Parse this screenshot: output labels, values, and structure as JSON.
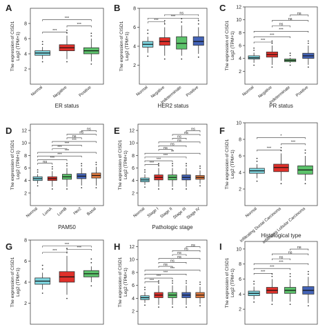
{
  "chart_data": [
    {
      "panel": "A",
      "type": "box",
      "ylabel": "The expression of CISD1",
      "ylabel2": "Log2 (TPM+1)",
      "xlabel": "ER status",
      "ylim": [
        0,
        10
      ],
      "yticks": [
        2,
        4,
        6,
        8
      ],
      "categories": [
        "Normal",
        "Negative",
        "Positive"
      ],
      "boxes": [
        {
          "q1": 3.8,
          "median": 4.1,
          "q3": 4.4,
          "lo": 3.3,
          "hi": 4.9,
          "color": "#7fd6e0"
        },
        {
          "q1": 4.4,
          "median": 4.8,
          "q3": 5.2,
          "lo": 3.3,
          "hi": 6.4,
          "color": "#e0302a"
        },
        {
          "q1": 4.0,
          "median": 4.4,
          "q3": 4.8,
          "lo": 3.0,
          "hi": 6.0,
          "color": "#5cc26b"
        }
      ],
      "comparisons": [
        {
          "a": 0,
          "b": 1,
          "label": "***"
        },
        {
          "a": 1,
          "b": 2,
          "label": "***"
        },
        {
          "a": 0,
          "b": 2,
          "label": "***"
        }
      ]
    },
    {
      "panel": "B",
      "type": "box",
      "ylabel": "The expression of CISD1",
      "ylabel2": "Log2 (TPM+1)",
      "xlabel": "HER2 status",
      "ylim": [
        0,
        8
      ],
      "yticks": [
        2,
        4,
        6,
        8
      ],
      "categories": [
        "Normal",
        "Negative",
        "Indeterminate",
        "Positive"
      ],
      "boxes": [
        {
          "q1": 3.9,
          "median": 4.2,
          "q3": 4.5,
          "lo": 3.3,
          "hi": 5.0,
          "color": "#7fd6e0"
        },
        {
          "q1": 4.1,
          "median": 4.5,
          "q3": 4.9,
          "lo": 3.0,
          "hi": 6.0,
          "color": "#e0302a"
        },
        {
          "q1": 3.7,
          "median": 4.3,
          "q3": 5.0,
          "lo": 3.0,
          "hi": 6.2,
          "color": "#5cc26b"
        },
        {
          "q1": 4.1,
          "median": 4.5,
          "q3": 5.0,
          "lo": 3.2,
          "hi": 6.0,
          "color": "#4464b8"
        }
      ],
      "comparisons": [
        {
          "a": 0,
          "b": 1,
          "label": "***"
        },
        {
          "a": 0,
          "b": 3,
          "label": "***"
        },
        {
          "a": 1,
          "b": 3,
          "label": "ns"
        }
      ]
    },
    {
      "panel": "C",
      "type": "box",
      "ylabel": "The expression of CISD1",
      "ylabel2": "Log2 (TPM+1)",
      "xlabel": "PR status",
      "ylim": [
        0,
        12
      ],
      "yticks": [
        2,
        4,
        6,
        8,
        10,
        12
      ],
      "categories": [
        "Normal",
        "Negative",
        "Indeterminate",
        "Positive"
      ],
      "boxes": [
        {
          "q1": 3.9,
          "median": 4.1,
          "q3": 4.4,
          "lo": 3.3,
          "hi": 4.9,
          "color": "#7fd6e0"
        },
        {
          "q1": 4.2,
          "median": 4.6,
          "q3": 5.0,
          "lo": 3.0,
          "hi": 6.0,
          "color": "#e0302a"
        },
        {
          "q1": 3.5,
          "median": 3.7,
          "q3": 3.9,
          "lo": 3.3,
          "hi": 4.1,
          "color": "#5cc26b"
        },
        {
          "q1": 4.0,
          "median": 4.4,
          "q3": 4.8,
          "lo": 3.0,
          "hi": 6.0,
          "color": "#4464b8"
        }
      ],
      "comparisons": [
        {
          "a": 0,
          "b": 1,
          "label": "***"
        },
        {
          "a": 0,
          "b": 2,
          "label": "***"
        },
        {
          "a": 0,
          "b": 3,
          "label": "***"
        },
        {
          "a": 1,
          "b": 2,
          "label": "ns"
        },
        {
          "a": 1,
          "b": 3,
          "label": "ns"
        },
        {
          "a": 2,
          "b": 3,
          "label": "ns"
        }
      ]
    },
    {
      "panel": "D",
      "type": "box",
      "ylabel": "The expression of CISD1",
      "ylabel2": "Log2 (TPM+1)",
      "xlabel": "PAM50",
      "ylim": [
        0,
        13
      ],
      "yticks": [
        2,
        4,
        6,
        8,
        10,
        12
      ],
      "categories": [
        "Normal",
        "LumA",
        "LumB",
        "Her2",
        "Basal"
      ],
      "boxes": [
        {
          "q1": 4.0,
          "median": 4.3,
          "q3": 4.6,
          "lo": 3.5,
          "hi": 5.0,
          "color": "#7fd6e0"
        },
        {
          "q1": 4.0,
          "median": 4.3,
          "q3": 4.6,
          "lo": 3.0,
          "hi": 5.5,
          "color": "#e0302a"
        },
        {
          "q1": 4.2,
          "median": 4.6,
          "q3": 5.0,
          "lo": 3.0,
          "hi": 6.0,
          "color": "#5cc26b"
        },
        {
          "q1": 4.3,
          "median": 4.7,
          "q3": 5.1,
          "lo": 3.2,
          "hi": 6.0,
          "color": "#4464b8"
        },
        {
          "q1": 4.4,
          "median": 4.8,
          "q3": 5.2,
          "lo": 3.2,
          "hi": 6.2,
          "color": "#e07a40"
        }
      ],
      "comparisons": [
        {
          "a": 0,
          "b": 1,
          "label": "ns"
        },
        {
          "a": 0,
          "b": 2,
          "label": "***"
        },
        {
          "a": 0,
          "b": 3,
          "label": "***"
        },
        {
          "a": 0,
          "b": 4,
          "label": "***"
        },
        {
          "a": 1,
          "b": 2,
          "label": "***"
        },
        {
          "a": 1,
          "b": 3,
          "label": "***"
        },
        {
          "a": 1,
          "b": 4,
          "label": "***"
        },
        {
          "a": 2,
          "b": 3,
          "label": "ns"
        },
        {
          "a": 2,
          "b": 4,
          "label": "ns"
        },
        {
          "a": 3,
          "b": 4,
          "label": "ns"
        }
      ]
    },
    {
      "panel": "E",
      "type": "box",
      "ylabel": "The expression of CISD1",
      "ylabel2": "Log2 (TPM+1)",
      "xlabel": "Pathologic stage",
      "ylim": [
        0,
        13
      ],
      "yticks": [
        2,
        4,
        6,
        8,
        10,
        12
      ],
      "categories": [
        "Normal",
        "Stage I",
        "Stage II",
        "Stage III",
        "Stage IV"
      ],
      "boxes": [
        {
          "q1": 3.8,
          "median": 4.1,
          "q3": 4.4,
          "lo": 3.3,
          "hi": 5.0,
          "color": "#7fd6e0"
        },
        {
          "q1": 4.1,
          "median": 4.5,
          "q3": 4.9,
          "lo": 3.0,
          "hi": 6.0,
          "color": "#e0302a"
        },
        {
          "q1": 4.1,
          "median": 4.5,
          "q3": 4.9,
          "lo": 3.0,
          "hi": 6.0,
          "color": "#5cc26b"
        },
        {
          "q1": 4.1,
          "median": 4.5,
          "q3": 4.9,
          "lo": 3.0,
          "hi": 6.0,
          "color": "#4464b8"
        },
        {
          "q1": 4.2,
          "median": 4.5,
          "q3": 4.8,
          "lo": 3.5,
          "hi": 5.6,
          "color": "#e07a40"
        }
      ],
      "comparisons": [
        {
          "a": 0,
          "b": 1,
          "label": "***"
        },
        {
          "a": 0,
          "b": 2,
          "label": "***"
        },
        {
          "a": 0,
          "b": 3,
          "label": "***"
        },
        {
          "a": 0,
          "b": 4,
          "label": "**"
        },
        {
          "a": 1,
          "b": 2,
          "label": "ns"
        },
        {
          "a": 1,
          "b": 3,
          "label": "ns"
        },
        {
          "a": 1,
          "b": 4,
          "label": "ns"
        },
        {
          "a": 2,
          "b": 3,
          "label": "ns"
        },
        {
          "a": 2,
          "b": 4,
          "label": "ns"
        },
        {
          "a": 3,
          "b": 4,
          "label": "ns"
        }
      ]
    },
    {
      "panel": "F",
      "type": "box",
      "ylabel": "The expression of CISD1",
      "ylabel2": "Log2 (TPM+1)",
      "xlabel": "Histological type",
      "ylim": [
        0,
        10
      ],
      "yticks": [
        2,
        4,
        6,
        8,
        10
      ],
      "categories": [
        "Normal",
        "Infiltrating Ductal Carcinoma",
        "Infiltrating Lobular Carcinoma"
      ],
      "boxes": [
        {
          "q1": 3.9,
          "median": 4.2,
          "q3": 4.5,
          "lo": 3.3,
          "hi": 5.0,
          "color": "#7fd6e0"
        },
        {
          "q1": 4.1,
          "median": 4.6,
          "q3": 5.0,
          "lo": 3.0,
          "hi": 6.3,
          "color": "#e0302a"
        },
        {
          "q1": 3.8,
          "median": 4.3,
          "q3": 4.8,
          "lo": 3.0,
          "hi": 6.0,
          "color": "#5cc26b"
        }
      ],
      "comparisons": [
        {
          "a": 0,
          "b": 1,
          "label": "***"
        },
        {
          "a": 1,
          "b": 2,
          "label": "***"
        },
        {
          "a": 0,
          "b": 2,
          "label": "*"
        }
      ]
    },
    {
      "panel": "G",
      "type": "box",
      "ylabel": "The expression of CISD1",
      "ylabel2": "Log2 (TPM+1)",
      "xlabel": "",
      "ylim": [
        0,
        8
      ],
      "yticks": [
        2,
        4,
        6,
        8
      ],
      "categories": [
        "",
        "",
        ""
      ],
      "boxes": [
        {
          "q1": 3.8,
          "median": 4.1,
          "q3": 4.4,
          "lo": 3.3,
          "hi": 4.9,
          "color": "#7fd6e0"
        },
        {
          "q1": 4.0,
          "median": 4.5,
          "q3": 5.0,
          "lo": 2.8,
          "hi": 6.5,
          "color": "#e0302a"
        },
        {
          "q1": 4.5,
          "median": 4.8,
          "q3": 5.1,
          "lo": 4.0,
          "hi": 5.5,
          "color": "#5cc26b"
        }
      ],
      "comparisons": [
        {
          "a": 0,
          "b": 1,
          "label": "***"
        },
        {
          "a": 1,
          "b": 2,
          "label": "***"
        },
        {
          "a": 0,
          "b": 2,
          "label": "***"
        }
      ]
    },
    {
      "panel": "H",
      "type": "box",
      "ylabel": "The expression of CISD1",
      "ylabel2": "Log2 (TPM+1)",
      "xlabel": "",
      "ylim": [
        0,
        13
      ],
      "yticks": [
        2,
        4,
        6,
        8,
        10,
        12
      ],
      "categories": [
        "",
        "",
        "",
        "",
        ""
      ],
      "boxes": [
        {
          "q1": 3.8,
          "median": 4.1,
          "q3": 4.4,
          "lo": 3.3,
          "hi": 5.0,
          "color": "#7fd6e0"
        },
        {
          "q1": 4.1,
          "median": 4.5,
          "q3": 4.9,
          "lo": 3.0,
          "hi": 6.0,
          "color": "#e0302a"
        },
        {
          "q1": 4.1,
          "median": 4.5,
          "q3": 4.9,
          "lo": 3.0,
          "hi": 6.0,
          "color": "#5cc26b"
        },
        {
          "q1": 4.1,
          "median": 4.5,
          "q3": 4.9,
          "lo": 3.0,
          "hi": 6.0,
          "color": "#4464b8"
        },
        {
          "q1": 4.1,
          "median": 4.5,
          "q3": 4.9,
          "lo": 3.2,
          "hi": 5.8,
          "color": "#e07a40"
        }
      ],
      "comparisons": [
        {
          "a": 0,
          "b": 1,
          "label": "***"
        },
        {
          "a": 0,
          "b": 2,
          "label": "***"
        },
        {
          "a": 0,
          "b": 3,
          "label": "***"
        },
        {
          "a": 0,
          "b": 4,
          "label": "***"
        },
        {
          "a": 1,
          "b": 2,
          "label": "ns"
        },
        {
          "a": 1,
          "b": 3,
          "label": "ns"
        },
        {
          "a": 1,
          "b": 4,
          "label": "ns"
        },
        {
          "a": 2,
          "b": 3,
          "label": "ns"
        },
        {
          "a": 2,
          "b": 4,
          "label": "ns"
        },
        {
          "a": 3,
          "b": 4,
          "label": "ns"
        }
      ]
    },
    {
      "panel": "I",
      "type": "box",
      "ylabel": "The expression of CISD1",
      "ylabel2": "Log2 (TPM+1)",
      "xlabel": "",
      "ylim": [
        0,
        11
      ],
      "yticks": [
        2,
        4,
        6,
        8,
        10
      ],
      "categories": [
        "",
        "",
        "",
        ""
      ],
      "boxes": [
        {
          "q1": 3.8,
          "median": 4.1,
          "q3": 4.4,
          "lo": 3.3,
          "hi": 5.0,
          "color": "#7fd6e0"
        },
        {
          "q1": 4.1,
          "median": 4.5,
          "q3": 4.9,
          "lo": 3.0,
          "hi": 6.0,
          "color": "#e0302a"
        },
        {
          "q1": 4.1,
          "median": 4.5,
          "q3": 4.9,
          "lo": 3.0,
          "hi": 6.0,
          "color": "#5cc26b"
        },
        {
          "q1": 4.0,
          "median": 4.5,
          "q3": 5.0,
          "lo": 2.8,
          "hi": 6.3,
          "color": "#4464b8"
        }
      ],
      "comparisons": [
        {
          "a": 0,
          "b": 1,
          "label": "***"
        },
        {
          "a": 0,
          "b": 2,
          "label": "***"
        },
        {
          "a": 0,
          "b": 3,
          "label": "***"
        },
        {
          "a": 1,
          "b": 2,
          "label": "ns"
        },
        {
          "a": 1,
          "b": 3,
          "label": "ns"
        },
        {
          "a": 2,
          "b": 3,
          "label": "ns"
        }
      ]
    }
  ]
}
